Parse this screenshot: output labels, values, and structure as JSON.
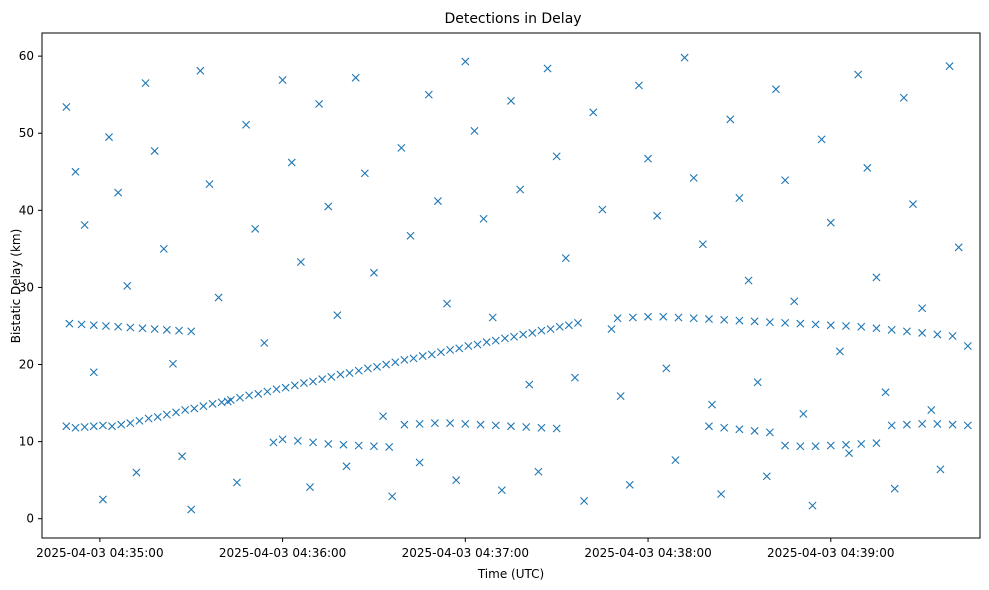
{
  "chart_data": {
    "type": "scatter",
    "title": "Detections in Delay",
    "xlabel": "Time (UTC)",
    "ylabel": "Bistatic Delay (km)",
    "marker": "x",
    "color": "#1f77b4",
    "xlim": [
      "2025-04-03 04:34:41",
      "2025-04-03 04:39:49"
    ],
    "ylim": [
      -2.5,
      63
    ],
    "xticks": [
      "2025-04-03 04:35:00",
      "2025-04-03 04:36:00",
      "2025-04-03 04:37:00",
      "2025-04-03 04:38:00",
      "2025-04-03 04:39:00"
    ],
    "yticks": [
      0,
      10,
      20,
      30,
      40,
      50,
      60
    ],
    "grid": false,
    "legend": "none",
    "series": [
      {
        "points": [
          [
            "04:34:49",
            12.0
          ],
          [
            "04:34:52",
            11.8
          ],
          [
            "04:34:55",
            11.9
          ],
          [
            "04:34:58",
            12.0
          ],
          [
            "04:35:01",
            12.1
          ],
          [
            "04:35:04",
            12.0
          ],
          [
            "04:35:07",
            12.2
          ],
          [
            "04:35:10",
            12.4
          ],
          [
            "04:35:13",
            12.7
          ],
          [
            "04:35:16",
            13.0
          ],
          [
            "04:35:19",
            13.2
          ],
          [
            "04:35:22",
            13.5
          ],
          [
            "04:35:25",
            13.8
          ],
          [
            "04:35:28",
            14.1
          ],
          [
            "04:35:31",
            14.3
          ],
          [
            "04:35:34",
            14.6
          ],
          [
            "04:35:37",
            14.9
          ],
          [
            "04:35:40",
            15.1
          ],
          [
            "04:35:43",
            15.4
          ],
          [
            "04:35:46",
            15.7
          ],
          [
            "04:35:49",
            16.0
          ],
          [
            "04:35:52",
            16.2
          ],
          [
            "04:35:55",
            16.5
          ],
          [
            "04:35:58",
            16.8
          ],
          [
            "04:36:01",
            17.0
          ],
          [
            "04:36:04",
            17.3
          ],
          [
            "04:36:07",
            17.6
          ],
          [
            "04:36:10",
            17.8
          ],
          [
            "04:36:13",
            18.1
          ],
          [
            "04:36:16",
            18.4
          ],
          [
            "04:36:19",
            18.7
          ],
          [
            "04:36:22",
            18.9
          ],
          [
            "04:36:25",
            19.2
          ],
          [
            "04:36:28",
            19.5
          ],
          [
            "04:36:31",
            19.7
          ],
          [
            "04:36:34",
            20.0
          ],
          [
            "04:36:37",
            20.3
          ],
          [
            "04:36:40",
            20.6
          ],
          [
            "04:36:43",
            20.8
          ],
          [
            "04:36:46",
            21.1
          ],
          [
            "04:36:49",
            21.3
          ],
          [
            "04:36:52",
            21.6
          ],
          [
            "04:36:55",
            21.9
          ],
          [
            "04:36:58",
            22.1
          ],
          [
            "04:37:01",
            22.4
          ],
          [
            "04:37:04",
            22.6
          ],
          [
            "04:37:07",
            22.9
          ],
          [
            "04:37:10",
            23.1
          ],
          [
            "04:37:13",
            23.4
          ],
          [
            "04:37:16",
            23.6
          ],
          [
            "04:37:19",
            23.9
          ],
          [
            "04:37:22",
            24.1
          ],
          [
            "04:37:25",
            24.4
          ],
          [
            "04:37:28",
            24.6
          ],
          [
            "04:37:31",
            24.9
          ],
          [
            "04:37:34",
            25.1
          ],
          [
            "04:37:37",
            25.4
          ],
          [
            "04:34:50",
            25.3
          ],
          [
            "04:34:54",
            25.2
          ],
          [
            "04:34:58",
            25.1
          ],
          [
            "04:35:02",
            25.0
          ],
          [
            "04:35:06",
            24.9
          ],
          [
            "04:35:10",
            24.8
          ],
          [
            "04:35:14",
            24.7
          ],
          [
            "04:35:18",
            24.6
          ],
          [
            "04:35:22",
            24.5
          ],
          [
            "04:35:26",
            24.4
          ],
          [
            "04:35:30",
            24.3
          ],
          [
            "04:37:50",
            26.0
          ],
          [
            "04:37:55",
            26.1
          ],
          [
            "04:38:00",
            26.2
          ],
          [
            "04:38:05",
            26.2
          ],
          [
            "04:38:10",
            26.1
          ],
          [
            "04:38:15",
            26.0
          ],
          [
            "04:38:20",
            25.9
          ],
          [
            "04:38:25",
            25.8
          ],
          [
            "04:38:30",
            25.7
          ],
          [
            "04:38:35",
            25.6
          ],
          [
            "04:38:40",
            25.5
          ],
          [
            "04:38:45",
            25.4
          ],
          [
            "04:38:50",
            25.3
          ],
          [
            "04:38:55",
            25.2
          ],
          [
            "04:39:00",
            25.1
          ],
          [
            "04:39:05",
            25.0
          ],
          [
            "04:39:10",
            24.9
          ],
          [
            "04:39:15",
            24.7
          ],
          [
            "04:39:20",
            24.5
          ],
          [
            "04:39:25",
            24.3
          ],
          [
            "04:39:30",
            24.1
          ],
          [
            "04:39:35",
            23.9
          ],
          [
            "04:39:40",
            23.7
          ],
          [
            "04:36:00",
            10.3
          ],
          [
            "04:36:05",
            10.1
          ],
          [
            "04:36:10",
            9.9
          ],
          [
            "04:36:15",
            9.7
          ],
          [
            "04:36:20",
            9.6
          ],
          [
            "04:36:25",
            9.5
          ],
          [
            "04:36:30",
            9.4
          ],
          [
            "04:36:35",
            9.3
          ],
          [
            "04:36:40",
            12.2
          ],
          [
            "04:36:45",
            12.3
          ],
          [
            "04:36:50",
            12.4
          ],
          [
            "04:36:55",
            12.4
          ],
          [
            "04:37:00",
            12.3
          ],
          [
            "04:37:05",
            12.2
          ],
          [
            "04:37:10",
            12.1
          ],
          [
            "04:37:15",
            12.0
          ],
          [
            "04:37:20",
            11.9
          ],
          [
            "04:37:25",
            11.8
          ],
          [
            "04:37:30",
            11.7
          ],
          [
            "04:38:20",
            12.0
          ],
          [
            "04:38:25",
            11.8
          ],
          [
            "04:38:30",
            11.6
          ],
          [
            "04:38:35",
            11.4
          ],
          [
            "04:38:40",
            11.2
          ],
          [
            "04:38:45",
            9.5
          ],
          [
            "04:38:50",
            9.4
          ],
          [
            "04:38:55",
            9.4
          ],
          [
            "04:39:00",
            9.5
          ],
          [
            "04:39:05",
            9.6
          ],
          [
            "04:39:10",
            9.7
          ],
          [
            "04:39:15",
            9.8
          ],
          [
            "04:39:20",
            12.1
          ],
          [
            "04:39:25",
            12.2
          ],
          [
            "04:39:30",
            12.3
          ],
          [
            "04:39:35",
            12.3
          ],
          [
            "04:39:40",
            12.2
          ],
          [
            "04:39:45",
            12.1
          ],
          [
            "04:34:49",
            53.4
          ],
          [
            "04:34:52",
            45.0
          ],
          [
            "04:34:55",
            38.1
          ],
          [
            "04:34:58",
            19.0
          ],
          [
            "04:35:01",
            2.5
          ],
          [
            "04:35:03",
            49.5
          ],
          [
            "04:35:06",
            42.3
          ],
          [
            "04:35:09",
            30.2
          ],
          [
            "04:35:12",
            6.0
          ],
          [
            "04:35:15",
            56.5
          ],
          [
            "04:35:18",
            47.7
          ],
          [
            "04:35:21",
            35.0
          ],
          [
            "04:35:24",
            20.1
          ],
          [
            "04:35:27",
            8.1
          ],
          [
            "04:35:30",
            1.2
          ],
          [
            "04:35:33",
            58.1
          ],
          [
            "04:35:36",
            43.4
          ],
          [
            "04:35:39",
            28.7
          ],
          [
            "04:35:42",
            15.2
          ],
          [
            "04:35:45",
            4.7
          ],
          [
            "04:35:48",
            51.1
          ],
          [
            "04:35:51",
            37.6
          ],
          [
            "04:35:54",
            22.8
          ],
          [
            "04:35:57",
            9.9
          ],
          [
            "04:36:00",
            56.9
          ],
          [
            "04:36:03",
            46.2
          ],
          [
            "04:36:06",
            33.3
          ],
          [
            "04:36:09",
            4.1
          ],
          [
            "04:36:12",
            53.8
          ],
          [
            "04:36:15",
            40.5
          ],
          [
            "04:36:18",
            26.4
          ],
          [
            "04:36:21",
            6.8
          ],
          [
            "04:36:24",
            57.2
          ],
          [
            "04:36:27",
            44.8
          ],
          [
            "04:36:30",
            31.9
          ],
          [
            "04:36:33",
            13.3
          ],
          [
            "04:36:36",
            2.9
          ],
          [
            "04:36:39",
            48.1
          ],
          [
            "04:36:42",
            36.7
          ],
          [
            "04:36:45",
            7.3
          ],
          [
            "04:36:48",
            55.0
          ],
          [
            "04:36:51",
            41.2
          ],
          [
            "04:36:54",
            27.9
          ],
          [
            "04:36:57",
            5.0
          ],
          [
            "04:37:00",
            59.3
          ],
          [
            "04:37:03",
            50.3
          ],
          [
            "04:37:06",
            38.9
          ],
          [
            "04:37:09",
            26.1
          ],
          [
            "04:37:12",
            3.7
          ],
          [
            "04:37:15",
            54.2
          ],
          [
            "04:37:18",
            42.7
          ],
          [
            "04:37:21",
            17.4
          ],
          [
            "04:37:24",
            6.1
          ],
          [
            "04:37:27",
            58.4
          ],
          [
            "04:37:30",
            47.0
          ],
          [
            "04:37:33",
            33.8
          ],
          [
            "04:37:36",
            18.3
          ],
          [
            "04:37:39",
            2.3
          ],
          [
            "04:37:42",
            52.7
          ],
          [
            "04:37:45",
            40.1
          ],
          [
            "04:37:48",
            24.6
          ],
          [
            "04:37:51",
            15.9
          ],
          [
            "04:37:54",
            4.4
          ],
          [
            "04:37:57",
            56.2
          ],
          [
            "04:38:00",
            46.7
          ],
          [
            "04:38:03",
            39.3
          ],
          [
            "04:38:06",
            19.5
          ],
          [
            "04:38:09",
            7.6
          ],
          [
            "04:38:12",
            59.8
          ],
          [
            "04:38:15",
            44.2
          ],
          [
            "04:38:18",
            35.6
          ],
          [
            "04:38:21",
            14.8
          ],
          [
            "04:38:24",
            3.2
          ],
          [
            "04:38:27",
            51.8
          ],
          [
            "04:38:30",
            41.6
          ],
          [
            "04:38:33",
            30.9
          ],
          [
            "04:38:36",
            17.7
          ],
          [
            "04:38:39",
            5.5
          ],
          [
            "04:38:42",
            55.7
          ],
          [
            "04:38:45",
            43.9
          ],
          [
            "04:38:48",
            28.2
          ],
          [
            "04:38:51",
            13.6
          ],
          [
            "04:38:54",
            1.7
          ],
          [
            "04:38:57",
            49.2
          ],
          [
            "04:39:00",
            38.4
          ],
          [
            "04:39:03",
            21.7
          ],
          [
            "04:39:06",
            8.5
          ],
          [
            "04:39:09",
            57.6
          ],
          [
            "04:39:12",
            45.5
          ],
          [
            "04:39:15",
            31.3
          ],
          [
            "04:39:18",
            16.4
          ],
          [
            "04:39:21",
            3.9
          ],
          [
            "04:39:24",
            54.6
          ],
          [
            "04:39:27",
            40.8
          ],
          [
            "04:39:30",
            27.3
          ],
          [
            "04:39:33",
            14.1
          ],
          [
            "04:39:36",
            6.4
          ],
          [
            "04:39:39",
            58.7
          ],
          [
            "04:39:42",
            35.2
          ],
          [
            "04:39:45",
            22.4
          ]
        ]
      }
    ]
  }
}
